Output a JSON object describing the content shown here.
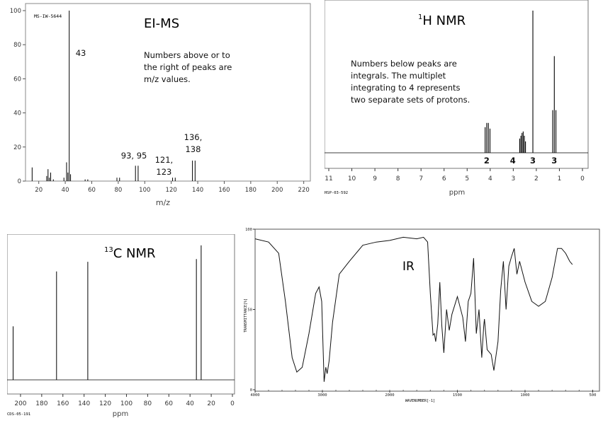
{
  "ms": {
    "title": "EI-MS",
    "id_label": "MS-IW-5644",
    "note": [
      "Numbers above or to",
      "the right of peaks are",
      "m/z values."
    ],
    "xlabel": "m/z",
    "peak_labels": [
      {
        "lines": [
          "43"
        ],
        "mz": 43
      },
      {
        "lines": [
          "93, 95"
        ],
        "mz": 94
      },
      {
        "lines": [
          "121,",
          "123"
        ],
        "mz": 122
      },
      {
        "lines": [
          "136,",
          "138"
        ],
        "mz": 137
      }
    ]
  },
  "h_nmr": {
    "title_sup": "1",
    "title": "H NMR",
    "note": [
      "Numbers below peaks are",
      "integrals. The multiplet",
      "integrating to 4 represents",
      "two separate sets of protons."
    ],
    "xlabel": "ppm",
    "id_label": "HSP-03-592",
    "integral_labels": [
      {
        "text": "2",
        "ppm": 4.15
      },
      {
        "text": "4",
        "ppm": 2.62
      },
      {
        "text": "3",
        "ppm": 2.15
      },
      {
        "text": "3",
        "ppm": 1.22
      }
    ]
  },
  "c_nmr": {
    "title_sup": "13",
    "title": "C NMR",
    "xlabel": "ppm",
    "id_label": "CDS-05-191"
  },
  "ir": {
    "title": "IR",
    "ylabel": "TRANSMITTANCE[%]",
    "xlabel": "WAVENUMBER[-1]"
  },
  "chart_data": [
    {
      "type": "bar",
      "name": "EI-MS",
      "x_label": "m/z",
      "xlim": [
        10,
        225
      ],
      "ylim": [
        0,
        100
      ],
      "x_ticks": [
        20,
        40,
        60,
        80,
        100,
        120,
        140,
        160,
        180,
        200,
        220
      ],
      "y_ticks": [
        0,
        20,
        40,
        60,
        80,
        100
      ],
      "peaks": [
        [
          15,
          8
        ],
        [
          26,
          3
        ],
        [
          27,
          7
        ],
        [
          28,
          2
        ],
        [
          29,
          5
        ],
        [
          31,
          1
        ],
        [
          39,
          2
        ],
        [
          41,
          11
        ],
        [
          42,
          5
        ],
        [
          43,
          100
        ],
        [
          44,
          4
        ],
        [
          55,
          1
        ],
        [
          57,
          1
        ],
        [
          79,
          2
        ],
        [
          81,
          2
        ],
        [
          93,
          9
        ],
        [
          95,
          9
        ],
        [
          121,
          2
        ],
        [
          123,
          2
        ],
        [
          136,
          12
        ],
        [
          138,
          12
        ]
      ]
    },
    {
      "type": "line",
      "name": "1H NMR",
      "x_label": "ppm",
      "xlim": [
        11,
        0
      ],
      "x_ticks": [
        11,
        10,
        9,
        8,
        7,
        6,
        5,
        4,
        3,
        2,
        1,
        0
      ],
      "peaks": [
        [
          4.22,
          0.18
        ],
        [
          4.15,
          0.21
        ],
        [
          4.08,
          0.21
        ],
        [
          4.01,
          0.17
        ],
        [
          2.72,
          0.1
        ],
        [
          2.67,
          0.12
        ],
        [
          2.62,
          0.14
        ],
        [
          2.57,
          0.15
        ],
        [
          2.52,
          0.12
        ],
        [
          2.47,
          0.08
        ],
        [
          2.15,
          1.0
        ],
        [
          1.29,
          0.3
        ],
        [
          1.22,
          0.68
        ],
        [
          1.15,
          0.3
        ]
      ]
    },
    {
      "type": "line",
      "name": "13C NMR",
      "x_label": "ppm",
      "xlim": [
        210,
        0
      ],
      "x_ticks": [
        200,
        180,
        160,
        140,
        120,
        100,
        80,
        60,
        40,
        20,
        0
      ],
      "peaks": [
        [
          207,
          0.39
        ],
        [
          166,
          0.79
        ],
        [
          136.5,
          0.86
        ],
        [
          34,
          0.88
        ],
        [
          29.5,
          0.98
        ]
      ]
    },
    {
      "type": "line",
      "name": "IR",
      "y_label": "TRANSMITTANCE[%]",
      "x_label": "WAVENUMBER[-1]",
      "xlim": [
        4000,
        450
      ],
      "ylim": [
        0,
        100
      ],
      "x_ticks": [
        4000,
        3000,
        2000,
        1500,
        1000,
        500
      ],
      "y_ticks": [
        0,
        50,
        100
      ],
      "points": [
        [
          4000,
          94
        ],
        [
          3800,
          92
        ],
        [
          3650,
          85
        ],
        [
          3550,
          55
        ],
        [
          3450,
          20
        ],
        [
          3380,
          11
        ],
        [
          3300,
          14
        ],
        [
          3200,
          35
        ],
        [
          3100,
          60
        ],
        [
          3050,
          64
        ],
        [
          3010,
          55
        ],
        [
          2975,
          5
        ],
        [
          2950,
          14
        ],
        [
          2930,
          10
        ],
        [
          2900,
          18
        ],
        [
          2850,
          42
        ],
        [
          2750,
          72
        ],
        [
          2600,
          80
        ],
        [
          2400,
          90
        ],
        [
          2200,
          92
        ],
        [
          2000,
          93
        ],
        [
          1900,
          95
        ],
        [
          1800,
          94
        ],
        [
          1750,
          95
        ],
        [
          1720,
          92
        ],
        [
          1700,
          60
        ],
        [
          1680,
          34
        ],
        [
          1670,
          35
        ],
        [
          1660,
          30
        ],
        [
          1645,
          41
        ],
        [
          1630,
          67
        ],
        [
          1615,
          40
        ],
        [
          1600,
          23
        ],
        [
          1580,
          50
        ],
        [
          1560,
          37
        ],
        [
          1540,
          47
        ],
        [
          1500,
          58
        ],
        [
          1460,
          45
        ],
        [
          1440,
          30
        ],
        [
          1420,
          55
        ],
        [
          1400,
          60
        ],
        [
          1380,
          82
        ],
        [
          1360,
          35
        ],
        [
          1340,
          50
        ],
        [
          1320,
          20
        ],
        [
          1305,
          40
        ],
        [
          1300,
          44
        ],
        [
          1280,
          25
        ],
        [
          1250,
          22
        ],
        [
          1230,
          12
        ],
        [
          1200,
          30
        ],
        [
          1180,
          62
        ],
        [
          1160,
          80
        ],
        [
          1140,
          50
        ],
        [
          1120,
          77
        ],
        [
          1100,
          83
        ],
        [
          1080,
          88
        ],
        [
          1060,
          72
        ],
        [
          1040,
          80
        ],
        [
          1000,
          67
        ],
        [
          950,
          55
        ],
        [
          900,
          52
        ],
        [
          850,
          55
        ],
        [
          800,
          70
        ],
        [
          760,
          88
        ],
        [
          730,
          88
        ],
        [
          700,
          85
        ],
        [
          670,
          80
        ],
        [
          650,
          78
        ]
      ]
    }
  ]
}
